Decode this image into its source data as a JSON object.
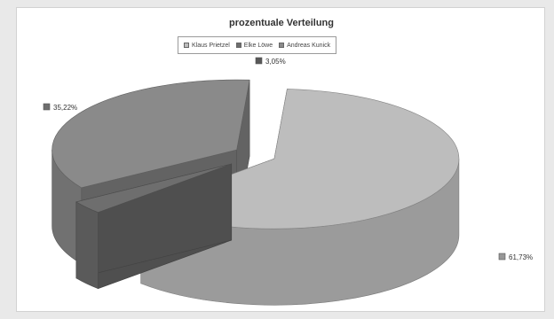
{
  "chart_data": {
    "type": "pie",
    "title": "prozentuale Verteilung",
    "legend_position": "top",
    "series": [
      {
        "name": "Klaus Prietzel",
        "value": 61.73,
        "label": "61,73%",
        "color": "#bdbdbd"
      },
      {
        "name": "Elke Löwe",
        "value": 3.05,
        "label": "3,05%",
        "color": "#6e6e6e"
      },
      {
        "name": "Andreas Kunick",
        "value": 35.22,
        "label": "35,22%",
        "color": "#8a8a8a"
      }
    ]
  }
}
